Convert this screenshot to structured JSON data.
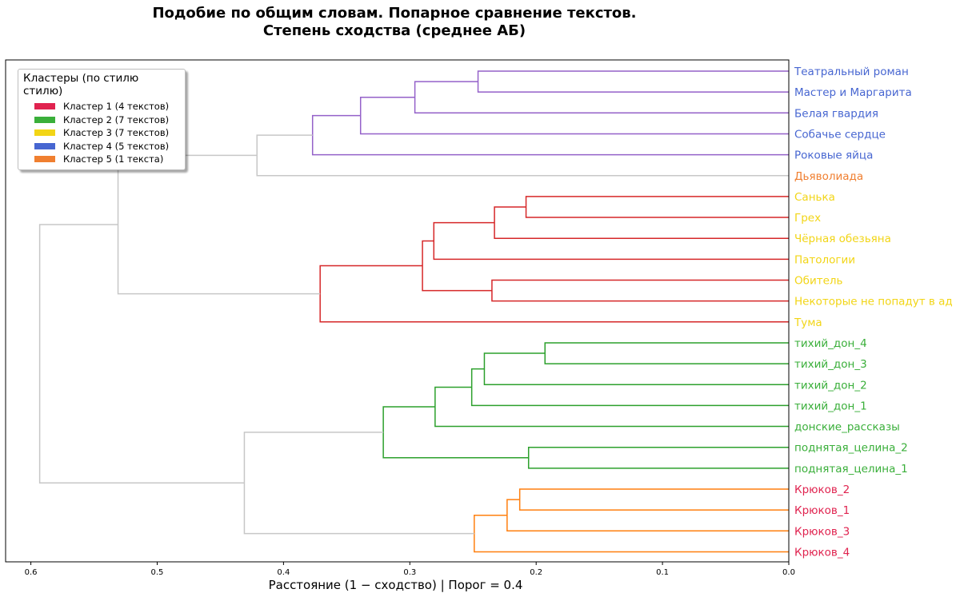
{
  "chart_data": {
    "type": "dendrogram",
    "title_line1": "Подобие по общим словам. Попарное сравнение текстов.",
    "title_line2": "Степень сходства (среднее АБ)",
    "xlabel": "Расстояние (1 − сходство) | Порог = 0.4",
    "xlim": [
      0.62,
      0.0
    ],
    "ticks": [
      0.6,
      0.5,
      0.4,
      0.3,
      0.2,
      0.1,
      0.0
    ],
    "tick_labels": [
      "0.6",
      "0.5",
      "0.4",
      "0.3",
      "0.2",
      "0.1",
      "0.0"
    ],
    "threshold": 0.4,
    "leaves": [
      {
        "label": "Театральный роман",
        "color": "#4766d1"
      },
      {
        "label": "Мастер и Маргарита",
        "color": "#4766d1"
      },
      {
        "label": "Белая гвардия",
        "color": "#4766d1"
      },
      {
        "label": "Собачье сердце",
        "color": "#4766d1"
      },
      {
        "label": "Роковые яйца",
        "color": "#4766d1"
      },
      {
        "label": "Дьяволиада",
        "color": "#f07f30"
      },
      {
        "label": "Санька",
        "color": "#f2d516"
      },
      {
        "label": "Грех",
        "color": "#f2d516"
      },
      {
        "label": "Чёрная обезьяна",
        "color": "#f2d516"
      },
      {
        "label": "Патологии",
        "color": "#f2d516"
      },
      {
        "label": "Обитель",
        "color": "#f2d516"
      },
      {
        "label": "Некоторые не попадут в ад",
        "color": "#f2d516"
      },
      {
        "label": "Тума",
        "color": "#f2d516"
      },
      {
        "label": "тихий_дон_4",
        "color": "#3aaf3a"
      },
      {
        "label": "тихий_дон_3",
        "color": "#3aaf3a"
      },
      {
        "label": "тихий_дон_2",
        "color": "#3aaf3a"
      },
      {
        "label": "тихий_дон_1",
        "color": "#3aaf3a"
      },
      {
        "label": "донские_рассказы",
        "color": "#3aaf3a"
      },
      {
        "label": "поднятая_целина_2",
        "color": "#3aaf3a"
      },
      {
        "label": "поднятая_целина_1",
        "color": "#3aaf3a"
      },
      {
        "label": "Крюков_2",
        "color": "#e0234f"
      },
      {
        "label": "Крюков_1",
        "color": "#e0234f"
      },
      {
        "label": "Крюков_3",
        "color": "#e0234f"
      },
      {
        "label": "Крюков_4",
        "color": "#e0234f"
      }
    ],
    "merges": [
      {
        "id": "m1",
        "a": 0,
        "b": 1,
        "d": 0.246,
        "color": "#9461c9"
      },
      {
        "id": "m2",
        "a": "m1",
        "b": 2,
        "d": 0.296,
        "color": "#9461c9"
      },
      {
        "id": "m3",
        "a": "m2",
        "b": 3,
        "d": 0.339,
        "color": "#9461c9"
      },
      {
        "id": "m4",
        "a": "m3",
        "b": 4,
        "d": 0.377,
        "color": "#9461c9"
      },
      {
        "id": "m5",
        "a": "m4",
        "b": 5,
        "d": 0.421,
        "color": "#c7c7c7"
      },
      {
        "id": "m6",
        "a": 6,
        "b": 7,
        "d": 0.208,
        "color": "#d62728"
      },
      {
        "id": "m7",
        "a": "m6",
        "b": 8,
        "d": 0.233,
        "color": "#d62728"
      },
      {
        "id": "m8",
        "a": "m7",
        "b": 9,
        "d": 0.281,
        "color": "#d62728"
      },
      {
        "id": "m9",
        "a": 10,
        "b": 11,
        "d": 0.235,
        "color": "#d62728"
      },
      {
        "id": "m10",
        "a": "m8",
        "b": "m9",
        "d": 0.29,
        "color": "#d62728"
      },
      {
        "id": "m11",
        "a": "m10",
        "b": 12,
        "d": 0.371,
        "color": "#d62728"
      },
      {
        "id": "m12",
        "a": "m5",
        "b": "m11",
        "d": 0.531,
        "color": "#c7c7c7"
      },
      {
        "id": "m13",
        "a": 13,
        "b": 14,
        "d": 0.193,
        "color": "#2ca02c"
      },
      {
        "id": "m14",
        "a": "m13",
        "b": 15,
        "d": 0.241,
        "color": "#2ca02c"
      },
      {
        "id": "m15",
        "a": "m14",
        "b": 16,
        "d": 0.251,
        "color": "#2ca02c"
      },
      {
        "id": "m16",
        "a": "m15",
        "b": 17,
        "d": 0.28,
        "color": "#2ca02c"
      },
      {
        "id": "m17",
        "a": 18,
        "b": 19,
        "d": 0.206,
        "color": "#2ca02c"
      },
      {
        "id": "m18",
        "a": "m16",
        "b": "m17",
        "d": 0.321,
        "color": "#2ca02c"
      },
      {
        "id": "m19",
        "a": 20,
        "b": 21,
        "d": 0.213,
        "color": "#ff7f0e"
      },
      {
        "id": "m20",
        "a": "m19",
        "b": 22,
        "d": 0.223,
        "color": "#ff7f0e"
      },
      {
        "id": "m21",
        "a": "m20",
        "b": 23,
        "d": 0.249,
        "color": "#ff7f0e"
      },
      {
        "id": "m22",
        "a": "m18",
        "b": "m21",
        "d": 0.431,
        "color": "#c7c7c7"
      },
      {
        "id": "m23",
        "a": "m12",
        "b": "m22",
        "d": 0.593,
        "color": "#c7c7c7"
      }
    ],
    "legend": {
      "title": "Кластеры (по стилю стилю)",
      "placement": "top-left",
      "items": [
        {
          "label": "Кластер 1 (4 текстов)",
          "color": "#e0234f"
        },
        {
          "label": "Кластер 2 (7 текстов)",
          "color": "#3aaf3a"
        },
        {
          "label": "Кластер 3 (7 текстов)",
          "color": "#f2d516"
        },
        {
          "label": "Кластер 4 (5 текстов)",
          "color": "#4766d1"
        },
        {
          "label": "Кластер 5 (1 текста)",
          "color": "#f07f30"
        }
      ]
    }
  }
}
